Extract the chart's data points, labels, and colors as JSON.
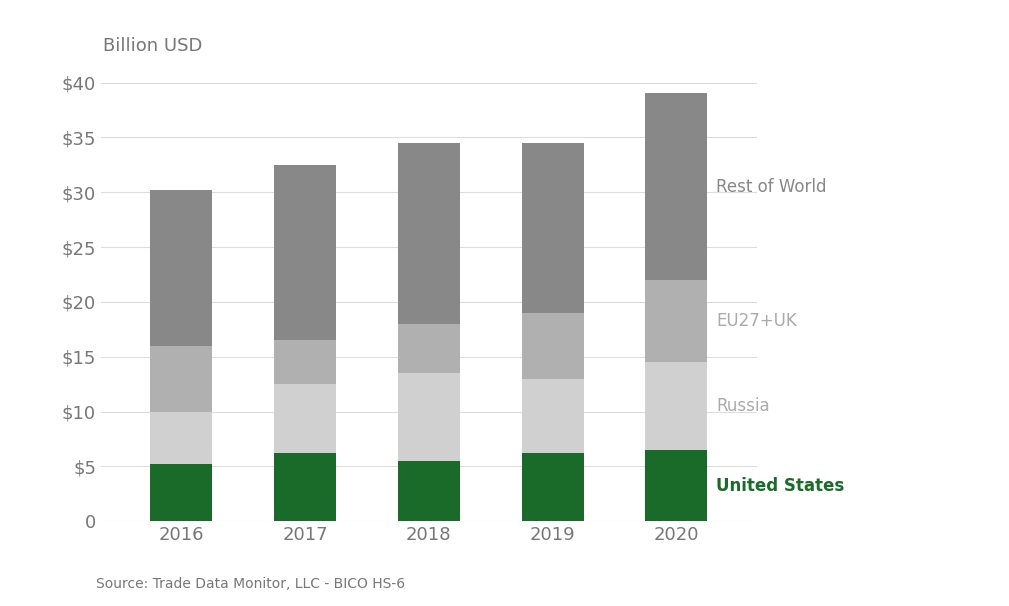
{
  "years": [
    "2016",
    "2017",
    "2018",
    "2019",
    "2020"
  ],
  "united_states": [
    5.2,
    6.2,
    5.5,
    6.2,
    6.5
  ],
  "russia": [
    4.8,
    6.3,
    8.0,
    6.8,
    8.0
  ],
  "eu27uk": [
    6.0,
    4.0,
    4.5,
    6.0,
    7.5
  ],
  "rest_of_world": [
    14.2,
    16.0,
    16.5,
    15.5,
    17.0
  ],
  "colors": {
    "united_states": "#1a6b2a",
    "russia": "#d0d0d0",
    "eu27uk": "#b0b0b0",
    "rest_of_world": "#888888"
  },
  "labels": {
    "united_states": "United States",
    "russia": "Russia",
    "eu27uk": "EU27+UK",
    "rest_of_world": "Rest of World"
  },
  "ylabel": "Billion USD",
  "ylim": [
    0,
    42
  ],
  "yticks": [
    0,
    5,
    10,
    15,
    20,
    25,
    30,
    35,
    40
  ],
  "ytick_labels": [
    "0",
    "$5",
    "$10",
    "$15",
    "$20",
    "$25",
    "$30",
    "$35",
    "$40"
  ],
  "source_text": "Source: Trade Data Monitor, LLC - BICO HS-6",
  "background_color": "#ffffff",
  "bar_width": 0.5,
  "label_colors": {
    "united_states": "#1a6b2a",
    "russia": "#aaaaaa",
    "eu27uk": "#aaaaaa",
    "rest_of_world": "#888888"
  }
}
